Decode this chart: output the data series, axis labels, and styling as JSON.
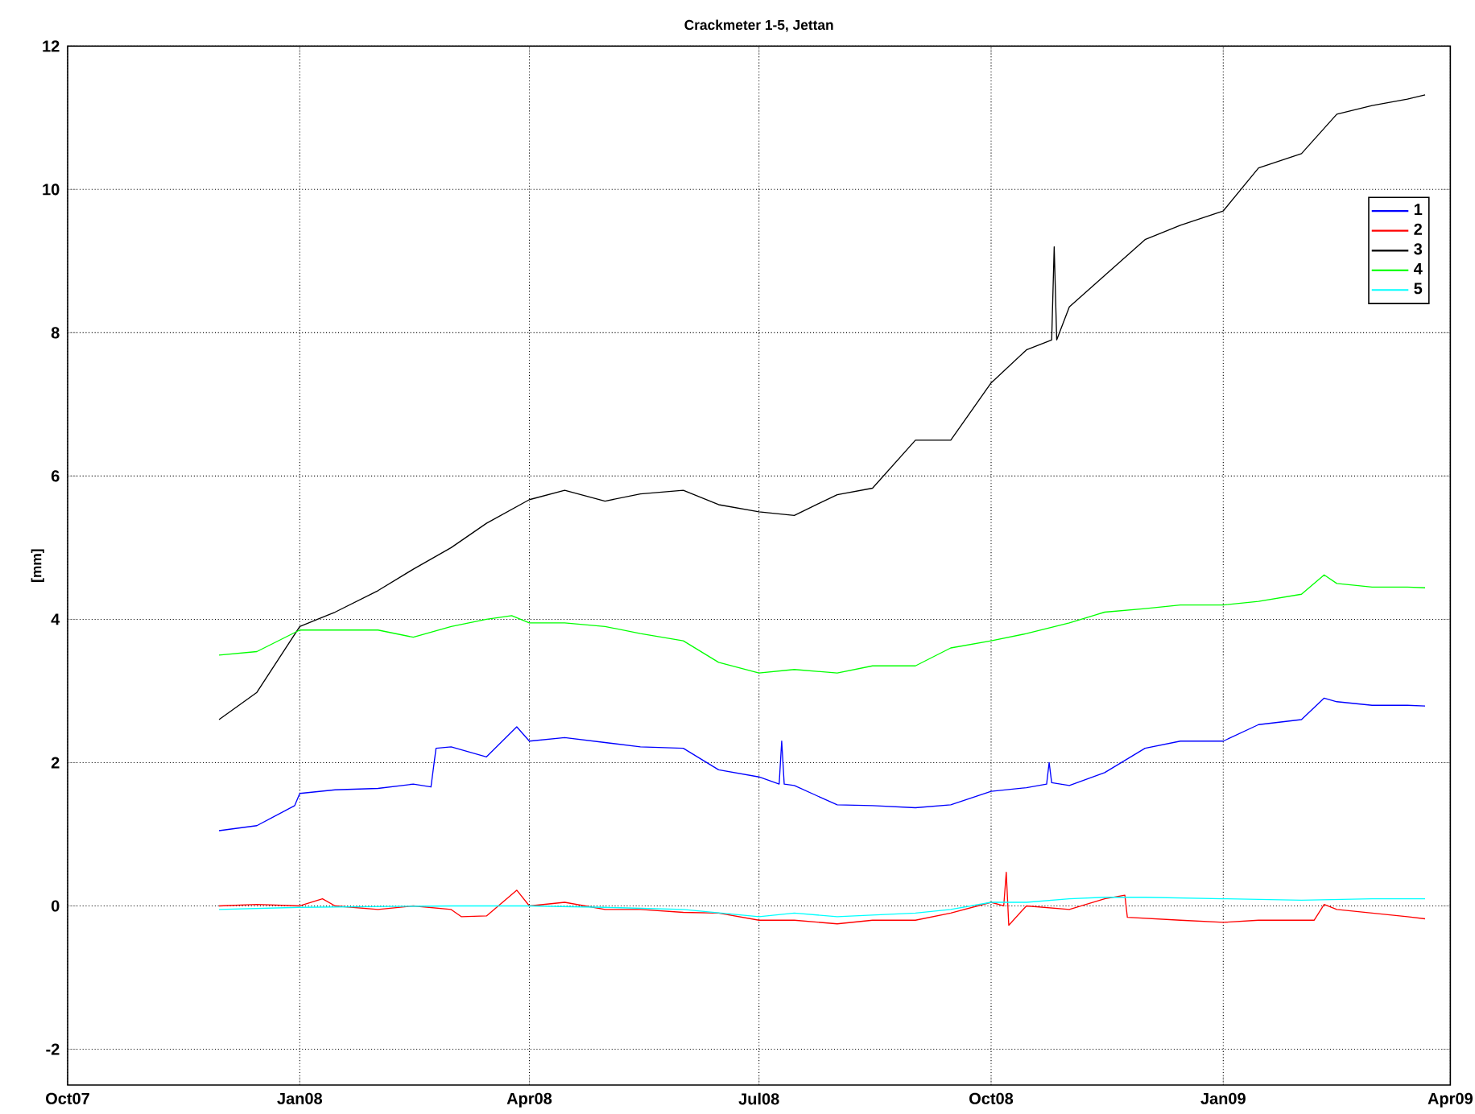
{
  "chart_data": {
    "type": "line",
    "title": "Crackmeter 1-5, Jettan",
    "ylabel": "[mm]",
    "xlim": [
      "2007-10-01",
      "2009-04-01"
    ],
    "xticks": [
      {
        "value": "2007-10-01",
        "label": "Oct07"
      },
      {
        "value": "2008-01-01",
        "label": "Jan08"
      },
      {
        "value": "2008-04-01",
        "label": "Apr08"
      },
      {
        "value": "2008-07-01",
        "label": "Jul08"
      },
      {
        "value": "2008-10-01",
        "label": "Oct08"
      },
      {
        "value": "2009-01-01",
        "label": "Jan09"
      },
      {
        "value": "2009-04-01",
        "label": "Apr09"
      }
    ],
    "ylim": [
      -2.5,
      12
    ],
    "yticks": [
      -2,
      0,
      2,
      4,
      6,
      8,
      10,
      12
    ],
    "grid": true,
    "legend": "top right",
    "marker": "none",
    "line_style": "solid",
    "series": [
      {
        "name": "1",
        "color": "#0000ff",
        "x": [
          "2007-11-30",
          "2007-12-15",
          "2007-12-30",
          "2008-01-01",
          "2008-01-15",
          "2008-02-01",
          "2008-02-15",
          "2008-02-22",
          "2008-02-24",
          "2008-03-01",
          "2008-03-15",
          "2008-03-27",
          "2008-04-01",
          "2008-04-15",
          "2008-05-01",
          "2008-05-15",
          "2008-06-01",
          "2008-06-15",
          "2008-07-01",
          "2008-07-09",
          "2008-07-10",
          "2008-07-11",
          "2008-07-15",
          "2008-08-01",
          "2008-08-15",
          "2008-09-01",
          "2008-09-15",
          "2008-10-01",
          "2008-10-15",
          "2008-10-23",
          "2008-10-24",
          "2008-10-25",
          "2008-11-01",
          "2008-11-15",
          "2008-12-01",
          "2008-12-15",
          "2009-01-01",
          "2009-01-15",
          "2009-02-01",
          "2009-02-10",
          "2009-02-15",
          "2009-03-01",
          "2009-03-15",
          "2009-03-22"
        ],
        "values": [
          1.05,
          1.12,
          1.4,
          1.57,
          1.62,
          1.64,
          1.7,
          1.66,
          2.2,
          2.22,
          2.08,
          2.5,
          2.3,
          2.35,
          2.28,
          2.22,
          2.2,
          1.9,
          1.8,
          1.7,
          2.3,
          1.7,
          1.68,
          1.41,
          1.4,
          1.37,
          1.41,
          1.6,
          1.65,
          1.7,
          2.0,
          1.72,
          1.68,
          1.86,
          2.2,
          2.3,
          2.3,
          2.53,
          2.6,
          2.9,
          2.85,
          2.8,
          2.8,
          2.79
        ]
      },
      {
        "name": "2",
        "color": "#ff0000",
        "x": [
          "2007-11-30",
          "2007-12-15",
          "2008-01-01",
          "2008-01-10",
          "2008-01-15",
          "2008-02-01",
          "2008-02-15",
          "2008-03-01",
          "2008-03-05",
          "2008-03-15",
          "2008-03-27",
          "2008-04-01",
          "2008-04-15",
          "2008-05-01",
          "2008-05-15",
          "2008-06-01",
          "2008-06-15",
          "2008-07-01",
          "2008-07-15",
          "2008-08-01",
          "2008-08-15",
          "2008-09-01",
          "2008-09-15",
          "2008-10-01",
          "2008-10-06",
          "2008-10-07",
          "2008-10-08",
          "2008-10-15",
          "2008-11-01",
          "2008-11-15",
          "2008-11-23",
          "2008-11-24",
          "2008-12-15",
          "2009-01-01",
          "2009-01-15",
          "2009-02-01",
          "2009-02-06",
          "2009-02-10",
          "2009-02-15",
          "2009-03-01",
          "2009-03-15",
          "2009-03-22"
        ],
        "values": [
          0,
          0.02,
          0,
          0.1,
          0,
          -0.05,
          0,
          -0.05,
          -0.15,
          -0.14,
          0.22,
          0,
          0.05,
          -0.05,
          -0.05,
          -0.09,
          -0.1,
          -0.2,
          -0.2,
          -0.25,
          -0.2,
          -0.2,
          -0.1,
          0.05,
          0,
          0.47,
          -0.27,
          0,
          -0.05,
          0.1,
          0.15,
          -0.16,
          -0.2,
          -0.23,
          -0.2,
          -0.2,
          -0.2,
          0.02,
          -0.05,
          -0.1,
          -0.15,
          -0.18
        ]
      },
      {
        "name": "3",
        "color": "#000000",
        "x": [
          "2007-11-30",
          "2007-12-15",
          "2008-01-01",
          "2008-01-15",
          "2008-02-01",
          "2008-02-15",
          "2008-03-01",
          "2008-03-15",
          "2008-04-01",
          "2008-04-15",
          "2008-05-01",
          "2008-05-15",
          "2008-06-01",
          "2008-06-15",
          "2008-07-01",
          "2008-07-15",
          "2008-08-01",
          "2008-08-15",
          "2008-09-01",
          "2008-09-15",
          "2008-10-01",
          "2008-10-15",
          "2008-10-25",
          "2008-10-26",
          "2008-10-27",
          "2008-11-01",
          "2008-11-15",
          "2008-12-01",
          "2008-12-15",
          "2009-01-01",
          "2009-01-15",
          "2009-02-01",
          "2009-02-15",
          "2009-03-01",
          "2009-03-15",
          "2009-03-22"
        ],
        "values": [
          2.6,
          2.98,
          3.9,
          4.1,
          4.4,
          4.7,
          5.0,
          5.34,
          5.67,
          5.8,
          5.65,
          5.75,
          5.8,
          5.6,
          5.5,
          5.45,
          5.74,
          5.83,
          6.5,
          6.5,
          7.3,
          7.76,
          7.9,
          9.2,
          7.9,
          8.36,
          8.8,
          9.3,
          9.5,
          9.7,
          10.3,
          10.5,
          11.05,
          11.17,
          11.26,
          11.32
        ]
      },
      {
        "name": "4",
        "color": "#00ff00",
        "x": [
          "2007-11-30",
          "2007-12-15",
          "2008-01-01",
          "2008-01-15",
          "2008-02-01",
          "2008-02-15",
          "2008-03-01",
          "2008-03-15",
          "2008-03-25",
          "2008-04-01",
          "2008-04-15",
          "2008-05-01",
          "2008-05-15",
          "2008-06-01",
          "2008-06-15",
          "2008-07-01",
          "2008-07-15",
          "2008-08-01",
          "2008-08-15",
          "2008-09-01",
          "2008-09-15",
          "2008-10-01",
          "2008-10-15",
          "2008-11-01",
          "2008-11-15",
          "2008-12-01",
          "2008-12-15",
          "2009-01-01",
          "2009-01-15",
          "2009-02-01",
          "2009-02-10",
          "2009-02-15",
          "2009-03-01",
          "2009-03-15",
          "2009-03-22"
        ],
        "values": [
          3.5,
          3.55,
          3.85,
          3.85,
          3.85,
          3.75,
          3.9,
          4.0,
          4.05,
          3.95,
          3.95,
          3.9,
          3.8,
          3.7,
          3.4,
          3.25,
          3.3,
          3.25,
          3.35,
          3.35,
          3.6,
          3.7,
          3.8,
          3.95,
          4.1,
          4.15,
          4.2,
          4.2,
          4.25,
          4.35,
          4.62,
          4.5,
          4.45,
          4.45,
          4.44
        ]
      },
      {
        "name": "5",
        "color": "#00ffff",
        "x": [
          "2007-11-30",
          "2008-01-01",
          "2008-03-01",
          "2008-04-01",
          "2008-05-01",
          "2008-06-01",
          "2008-07-01",
          "2008-07-15",
          "2008-08-01",
          "2008-09-01",
          "2008-09-15",
          "2008-10-01",
          "2008-10-15",
          "2008-11-01",
          "2008-11-15",
          "2008-12-01",
          "2009-01-01",
          "2009-02-01",
          "2009-03-01",
          "2009-03-22"
        ],
        "values": [
          -0.05,
          -0.02,
          0,
          0,
          -0.02,
          -0.05,
          -0.15,
          -0.1,
          -0.15,
          -0.1,
          -0.05,
          0.05,
          0.05,
          0.1,
          0.12,
          0.12,
          0.1,
          0.08,
          0.1,
          0.1
        ]
      }
    ]
  }
}
